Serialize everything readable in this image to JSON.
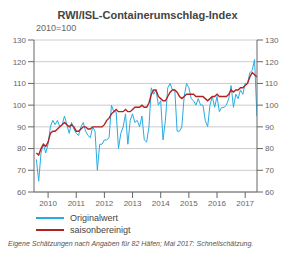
{
  "chart_data": {
    "type": "line",
    "title": "RWI/ISL-Containerumschlag-Index",
    "subtitle": "2010=100",
    "annotations": [
      "Eigene Schätzungen nach Angaben für 82 Häfen; Mai 2017: Schnellschätzung."
    ],
    "x": [
      2009.583,
      2009.667,
      2009.75,
      2009.833,
      2009.917,
      2010.0,
      2010.083,
      2010.167,
      2010.25,
      2010.333,
      2010.417,
      2010.5,
      2010.583,
      2010.667,
      2010.75,
      2010.833,
      2010.917,
      2011.0,
      2011.083,
      2011.167,
      2011.25,
      2011.333,
      2011.417,
      2011.5,
      2011.583,
      2011.667,
      2011.75,
      2011.833,
      2011.917,
      2012.0,
      2012.083,
      2012.167,
      2012.25,
      2012.333,
      2012.417,
      2012.5,
      2012.583,
      2012.667,
      2012.75,
      2012.833,
      2012.917,
      2013.0,
      2013.083,
      2013.167,
      2013.25,
      2013.333,
      2013.417,
      2013.5,
      2013.583,
      2013.667,
      2013.75,
      2013.833,
      2013.917,
      2014.0,
      2014.083,
      2014.167,
      2014.25,
      2014.333,
      2014.417,
      2014.5,
      2014.583,
      2014.667,
      2014.75,
      2014.833,
      2014.917,
      2015.0,
      2015.083,
      2015.167,
      2015.25,
      2015.333,
      2015.417,
      2015.5,
      2015.583,
      2015.667,
      2015.75,
      2015.833,
      2015.917,
      2016.0,
      2016.083,
      2016.167,
      2016.25,
      2016.333,
      2016.417,
      2016.5,
      2016.583,
      2016.667,
      2016.75,
      2016.833,
      2016.917,
      2017.0,
      2017.083,
      2017.167,
      2017.25,
      2017.333,
      2017.417
    ],
    "series": [
      {
        "name": "Originalwert",
        "color": "#29abe2",
        "values": [
          75,
          65,
          78,
          82,
          78,
          82,
          90,
          93,
          91,
          93,
          90,
          91,
          95,
          91,
          87,
          92,
          89,
          87,
          86,
          90,
          92,
          88,
          86,
          85,
          90,
          88,
          70,
          82,
          82,
          84,
          84,
          85,
          100,
          97,
          97,
          80,
          87,
          90,
          96,
          82,
          93,
          96,
          92,
          93,
          90,
          95,
          84,
          83,
          90,
          108,
          105,
          107,
          100,
          102,
          84,
          93,
          108,
          110,
          107,
          107,
          88,
          88,
          90,
          104,
          110,
          108,
          103,
          102,
          100,
          103,
          100,
          100,
          93,
          90,
          100,
          104,
          99,
          104,
          97,
          99,
          99,
          100,
          103,
          109,
          99,
          105,
          103,
          107,
          105,
          110,
          110,
          115,
          116,
          121,
          95
        ]
      },
      {
        "name": "saisonbereinigt",
        "color": "#b22222",
        "values": [
          78,
          77,
          80,
          82,
          81,
          83,
          87,
          88,
          88,
          89,
          90,
          91,
          92,
          91,
          90,
          91,
          90,
          88,
          88,
          89,
          90,
          90,
          89,
          89,
          90,
          90,
          90,
          90,
          90,
          91,
          93,
          94,
          96,
          97,
          98,
          97,
          97,
          97,
          98,
          97,
          97,
          98,
          99,
          99,
          99,
          100,
          99,
          99,
          101,
          105,
          107,
          107,
          104,
          103,
          102,
          102,
          104,
          106,
          107,
          107,
          106,
          104,
          103,
          104,
          105,
          105,
          105,
          105,
          104,
          104,
          104,
          104,
          103,
          102,
          103,
          104,
          104,
          105,
          104,
          104,
          104,
          104,
          105,
          107,
          106,
          107,
          107,
          108,
          108,
          109,
          110,
          113,
          115,
          114,
          113
        ]
      }
    ],
    "xlim": [
      2009.5,
      2017.42
    ],
    "xticks": [
      2010,
      2011,
      2012,
      2013,
      2014,
      2015,
      2016,
      2017
    ],
    "ylim": [
      60,
      130
    ],
    "yticks": [
      60,
      70,
      80,
      90,
      100,
      110,
      120,
      130
    ],
    "grid": true,
    "legend": "bottom"
  }
}
